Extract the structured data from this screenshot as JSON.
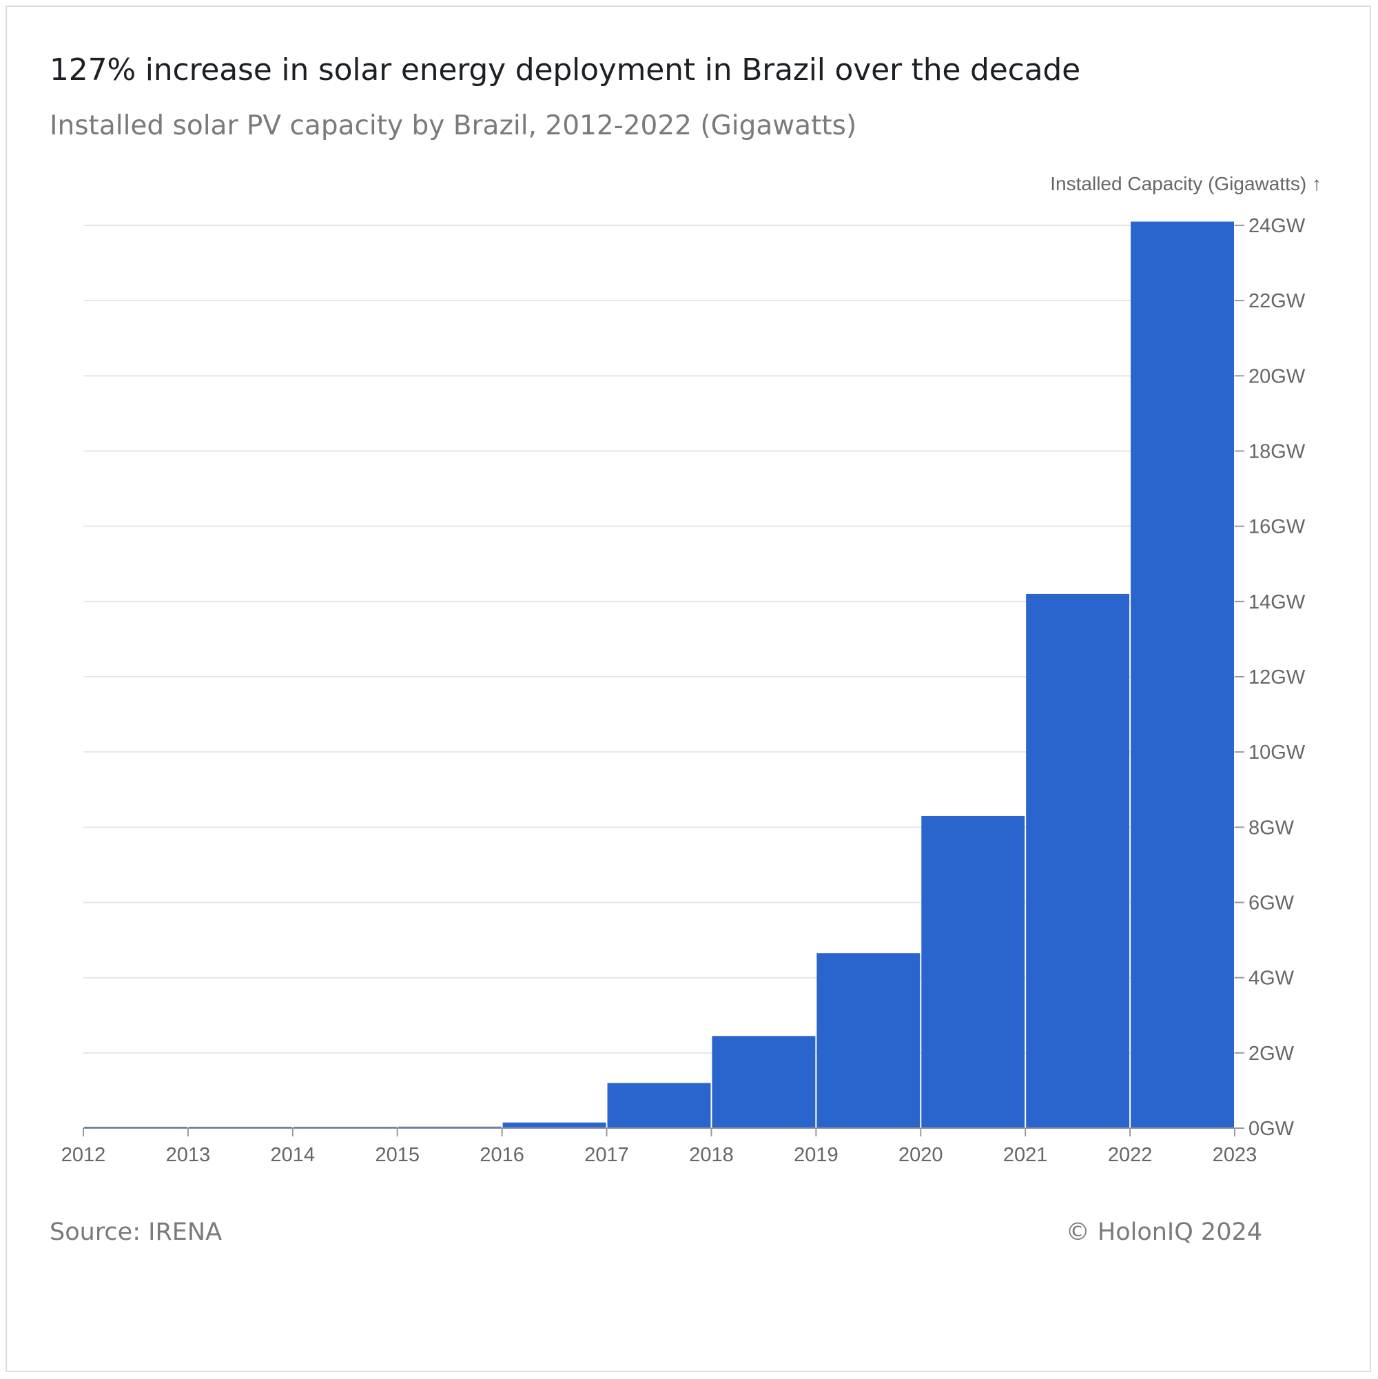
{
  "header": {
    "title": "127% increase in solar energy deployment in Brazil over the decade",
    "subtitle": "Installed solar PV capacity by Brazil, 2012-2022 (Gigawatts)"
  },
  "footer": {
    "source": "Source: IRENA",
    "credit": "© HolonIQ 2024"
  },
  "chart_data": {
    "type": "bar",
    "ylabel": "Installed Capacity (Gigawatts) ↑",
    "categories": [
      "2012",
      "2013",
      "2014",
      "2015",
      "2016",
      "2017",
      "2018",
      "2019",
      "2020",
      "2021",
      "2022"
    ],
    "values": [
      0.007,
      0.01,
      0.02,
      0.04,
      0.15,
      1.2,
      2.45,
      4.65,
      8.3,
      14.2,
      24.1
    ],
    "x_ticks": [
      "2012",
      "2013",
      "2014",
      "2015",
      "2016",
      "2017",
      "2018",
      "2019",
      "2020",
      "2021",
      "2022",
      "2023"
    ],
    "y_ticks": [
      {
        "value": 0,
        "label": "0GW"
      },
      {
        "value": 2,
        "label": "2GW"
      },
      {
        "value": 4,
        "label": "4GW"
      },
      {
        "value": 6,
        "label": "6GW"
      },
      {
        "value": 8,
        "label": "8GW"
      },
      {
        "value": 10,
        "label": "10GW"
      },
      {
        "value": 12,
        "label": "12GW"
      },
      {
        "value": 14,
        "label": "14GW"
      },
      {
        "value": 16,
        "label": "16GW"
      },
      {
        "value": 18,
        "label": "18GW"
      },
      {
        "value": 20,
        "label": "20GW"
      },
      {
        "value": 22,
        "label": "22GW"
      },
      {
        "value": 24,
        "label": "24GW"
      }
    ],
    "ylim": [
      0,
      24
    ],
    "y_axis_position": "right",
    "grid": true,
    "bar_color": "#2965cc",
    "grid_color": "#e6e6e6",
    "axis_color": "#999999"
  }
}
